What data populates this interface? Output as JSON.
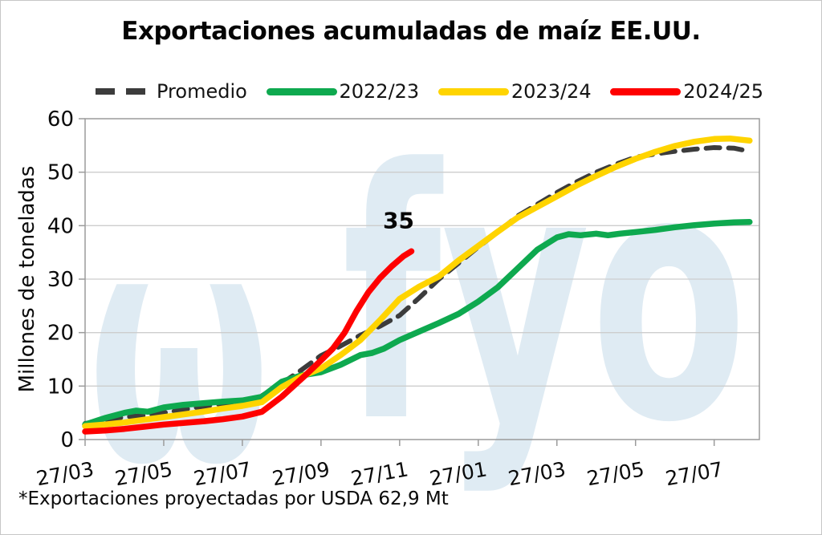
{
  "title": "Exportaciones acumuladas de maíz EE.UU.",
  "footnote": "*Exportaciones proyectadas por USDA 62,9 Mt",
  "watermark": {
    "mark": "ω",
    "text": "fyo",
    "color": "#dfebf3"
  },
  "chart_data": {
    "type": "line",
    "title": "Exportaciones acumuladas de maíz EE.UU.",
    "xlabel": "",
    "ylabel": "Millones de toneladas",
    "ylim": [
      0,
      60
    ],
    "yticks": [
      0,
      10,
      20,
      30,
      40,
      50,
      60
    ],
    "xlim": [
      0,
      17.15
    ],
    "xticks_t": [
      0,
      2,
      4,
      6,
      8,
      10,
      12,
      14,
      16
    ],
    "xtick_labels": [
      "27/03",
      "27/05",
      "27/07",
      "27/09",
      "27/11",
      "27/01",
      "27/03",
      "27/05",
      "27/07"
    ],
    "grid": "horizontal",
    "legend_position": "top",
    "grid_color": "#cdcdcd",
    "frame_color": "#9b9b9b",
    "annotation": {
      "label": "35",
      "t": 8.3,
      "value": 35,
      "dx": -16,
      "dy": -30
    },
    "series": [
      {
        "name": "Promedio",
        "color": "#3c3c3c",
        "style": "dashed",
        "points": [
          [
            0,
            3.0
          ],
          [
            0.5,
            3.6
          ],
          [
            1,
            4.2
          ],
          [
            1.5,
            4.5
          ],
          [
            2,
            5.0
          ],
          [
            2.5,
            5.6
          ],
          [
            3,
            6.2
          ],
          [
            3.5,
            6.7
          ],
          [
            4,
            7.2
          ],
          [
            4.5,
            8.2
          ],
          [
            5,
            10.5
          ],
          [
            5.5,
            13.0
          ],
          [
            6,
            15.7
          ],
          [
            6.5,
            17.5
          ],
          [
            7,
            19.5
          ],
          [
            7.5,
            21.2
          ],
          [
            8,
            23.2
          ],
          [
            8.5,
            26.5
          ],
          [
            9,
            30.0
          ],
          [
            9.5,
            33.0
          ],
          [
            10,
            36.0
          ],
          [
            10.5,
            38.8
          ],
          [
            11,
            41.8
          ],
          [
            11.5,
            44.0
          ],
          [
            12,
            46.2
          ],
          [
            12.5,
            48.2
          ],
          [
            13,
            50.0
          ],
          [
            13.5,
            51.5
          ],
          [
            14,
            52.8
          ],
          [
            14.5,
            53.4
          ],
          [
            15,
            53.9
          ],
          [
            15.5,
            54.3
          ],
          [
            16,
            54.6
          ],
          [
            16.5,
            54.5
          ],
          [
            16.9,
            53.9
          ]
        ]
      },
      {
        "name": "2022/23",
        "color": "#0ea94f",
        "style": "solid",
        "points": [
          [
            0,
            2.8
          ],
          [
            0.5,
            4.0
          ],
          [
            1,
            5.0
          ],
          [
            1.3,
            5.4
          ],
          [
            1.6,
            5.2
          ],
          [
            2,
            6.0
          ],
          [
            2.5,
            6.5
          ],
          [
            3,
            6.8
          ],
          [
            3.5,
            7.1
          ],
          [
            4,
            7.3
          ],
          [
            4.5,
            8.0
          ],
          [
            5,
            10.8
          ],
          [
            5.5,
            12.0
          ],
          [
            6,
            12.6
          ],
          [
            6.5,
            14.0
          ],
          [
            7,
            15.8
          ],
          [
            7.3,
            16.2
          ],
          [
            7.6,
            17.0
          ],
          [
            8,
            18.6
          ],
          [
            8.5,
            20.2
          ],
          [
            9,
            21.8
          ],
          [
            9.5,
            23.5
          ],
          [
            10,
            25.8
          ],
          [
            10.5,
            28.5
          ],
          [
            11,
            32.0
          ],
          [
            11.5,
            35.5
          ],
          [
            12,
            37.8
          ],
          [
            12.3,
            38.4
          ],
          [
            12.6,
            38.2
          ],
          [
            13,
            38.5
          ],
          [
            13.3,
            38.2
          ],
          [
            13.6,
            38.5
          ],
          [
            14,
            38.8
          ],
          [
            14.5,
            39.2
          ],
          [
            15,
            39.7
          ],
          [
            15.5,
            40.1
          ],
          [
            16,
            40.4
          ],
          [
            16.5,
            40.6
          ],
          [
            16.9,
            40.7
          ]
        ]
      },
      {
        "name": "2023/24",
        "color": "#ffd400",
        "style": "solid",
        "points": [
          [
            0,
            2.5
          ],
          [
            0.5,
            2.8
          ],
          [
            1,
            3.2
          ],
          [
            1.5,
            3.7
          ],
          [
            2,
            4.2
          ],
          [
            2.5,
            4.7
          ],
          [
            3,
            5.2
          ],
          [
            3.5,
            5.8
          ],
          [
            4,
            6.3
          ],
          [
            4.5,
            7.0
          ],
          [
            5,
            9.8
          ],
          [
            5.5,
            11.8
          ],
          [
            6,
            13.3
          ],
          [
            6.5,
            15.8
          ],
          [
            7,
            18.6
          ],
          [
            7.5,
            22.3
          ],
          [
            8,
            26.3
          ],
          [
            8.5,
            28.6
          ],
          [
            9,
            30.5
          ],
          [
            9.5,
            33.5
          ],
          [
            10,
            36.2
          ],
          [
            10.5,
            38.9
          ],
          [
            11,
            41.5
          ],
          [
            11.5,
            43.5
          ],
          [
            12,
            45.5
          ],
          [
            12.5,
            47.5
          ],
          [
            13,
            49.3
          ],
          [
            13.5,
            51.0
          ],
          [
            14,
            52.5
          ],
          [
            14.5,
            53.8
          ],
          [
            15,
            54.9
          ],
          [
            15.5,
            55.7
          ],
          [
            16,
            56.2
          ],
          [
            16.4,
            56.3
          ],
          [
            16.9,
            55.9
          ]
        ]
      },
      {
        "name": "2024/25",
        "color": "#fe0000",
        "style": "solid",
        "points": [
          [
            0,
            1.5
          ],
          [
            0.5,
            1.7
          ],
          [
            1,
            2.0
          ],
          [
            1.5,
            2.4
          ],
          [
            2,
            2.8
          ],
          [
            2.5,
            3.1
          ],
          [
            3,
            3.4
          ],
          [
            3.5,
            3.8
          ],
          [
            4,
            4.3
          ],
          [
            4.5,
            5.2
          ],
          [
            5,
            8.0
          ],
          [
            5.3,
            10.0
          ],
          [
            5.6,
            12.0
          ],
          [
            6,
            14.8
          ],
          [
            6.3,
            17.0
          ],
          [
            6.6,
            20.0
          ],
          [
            6.9,
            24.0
          ],
          [
            7.2,
            27.5
          ],
          [
            7.5,
            30.2
          ],
          [
            7.8,
            32.4
          ],
          [
            8.1,
            34.3
          ],
          [
            8.3,
            35.2
          ]
        ]
      }
    ]
  }
}
